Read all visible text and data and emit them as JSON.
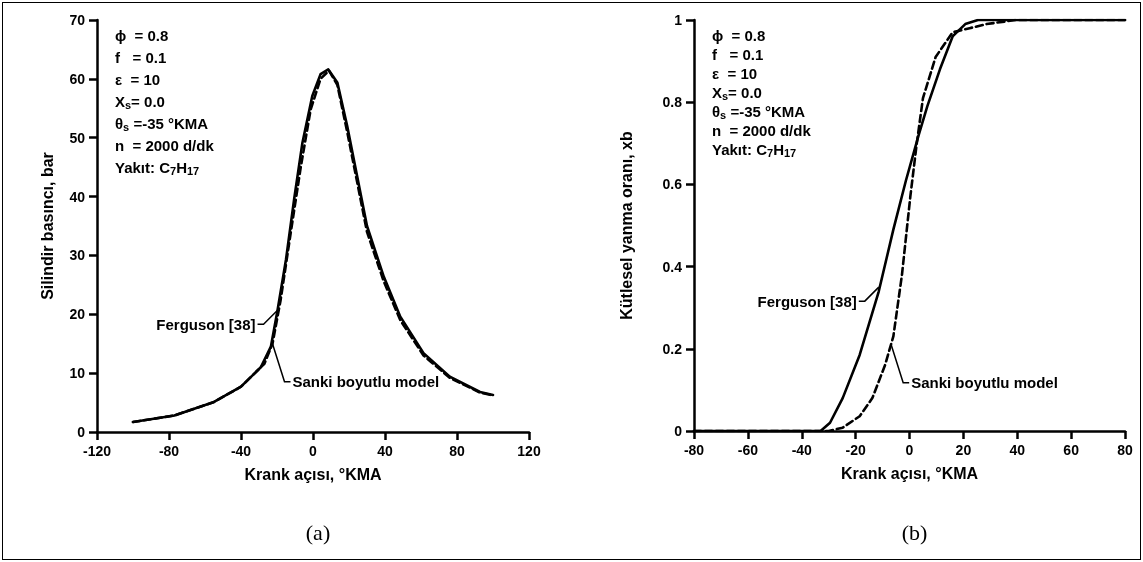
{
  "chart_data": [
    {
      "type": "line",
      "title": "(a)",
      "xlabel": "Krank açısı, °KMA",
      "ylabel": "Silindir basıncı, bar",
      "xlim": [
        -120,
        120
      ],
      "xticks": [
        -120,
        -80,
        -40,
        0,
        40,
        80,
        120
      ],
      "ylim": [
        0,
        70
      ],
      "yticks": [
        0,
        10,
        20,
        30,
        40,
        50,
        60,
        70
      ],
      "grid": false,
      "marker": "none",
      "series": [
        {
          "color": "#000000",
          "line_style": "solid",
          "x": [
            -100,
            -77,
            -55,
            -40,
            -29,
            -23.4,
            -19.7,
            -15,
            -10.5,
            -5.9,
            -0.4,
            4.2,
            8.5,
            13.5,
            19,
            24.5,
            30,
            39.3,
            48.5,
            61.4,
            76,
            92.8,
            100
          ],
          "values": [
            1.7,
            2.8,
            5.1,
            7.7,
            11,
            14.5,
            20.7,
            29.3,
            39.5,
            49.1,
            57.1,
            60.8,
            61.6,
            59.4,
            52,
            43.5,
            35,
            26.4,
            19.6,
            13.4,
            9.4,
            6.8,
            6.3
          ]
        },
        {
          "color": "#000000",
          "line_style": "dashed",
          "x": [
            -100,
            -77,
            -55,
            -40,
            -29,
            -27,
            -22.5,
            -18,
            -12.4,
            -6.8,
            -1.3,
            4.2,
            8.9,
            13.5,
            19,
            24.5,
            30,
            39.3,
            48.5,
            61.4,
            76,
            92.8,
            100
          ],
          "values": [
            1.7,
            2.8,
            5.1,
            7.7,
            11,
            11.6,
            15,
            22.4,
            33.8,
            45,
            54.8,
            60,
            61.4,
            59,
            51,
            42.5,
            34,
            25.6,
            19,
            13,
            9.2,
            6.7,
            6.2
          ]
        }
      ],
      "annotations": [
        "ϕ  = 0.8",
        "f   = 0.1",
        "ε  = 10",
        "X$_{s}$= 0.0",
        "θ$_{s}$ =-35 °KMA",
        "n  = 2000 d/dk",
        "Yakıt: C$_{7}$H$_{17}$",
        {
          "text": "Ferguson [38]",
          "x": -19.7,
          "y": 20.7
        },
        {
          "text": "Sanki boyutlu model",
          "x": -22.5,
          "y": 15
        }
      ]
    },
    {
      "type": "line",
      "title": "(b)",
      "xlabel": "Krank açısı, °KMA",
      "ylabel": "Kütlesel yanma oranı, xb",
      "xlim": [
        -80,
        80
      ],
      "xticks": [
        -80,
        -60,
        -40,
        -20,
        0,
        20,
        40,
        60,
        80
      ],
      "ylim": [
        0,
        1
      ],
      "yticks": [
        0,
        0.2,
        0.4,
        0.6,
        0.8,
        1
      ],
      "grid": false,
      "marker": "none",
      "series": [
        {
          "color": "#000000",
          "line_style": "solid",
          "x": [
            -80,
            -33,
            -29.5,
            -24.8,
            -18.5,
            -11.4,
            -6,
            -1.3,
            3.4,
            6.6,
            11.3,
            16,
            20.7,
            25.4,
            80
          ],
          "values": [
            0,
            0,
            0.02,
            0.08,
            0.185,
            0.34,
            0.49,
            0.61,
            0.72,
            0.79,
            0.88,
            0.96,
            0.99,
            1,
            1
          ]
        },
        {
          "color": "#000000",
          "line_style": "dashed",
          "x": [
            -80,
            -30,
            -24.8,
            -18.5,
            -13.8,
            -9.1,
            -6,
            -2.8,
            0.3,
            2.7,
            5,
            9.7,
            16,
            22.3,
            28.5,
            39.5,
            80
          ],
          "values": [
            0,
            0,
            0.008,
            0.036,
            0.08,
            0.16,
            0.23,
            0.38,
            0.57,
            0.7,
            0.81,
            0.91,
            0.97,
            0.98,
            0.99,
            1,
            1
          ]
        }
      ],
      "annotations": [
        "ϕ  = 0.8",
        "f   = 0.1",
        "ε  = 10",
        "X$_{s}$= 0.0",
        "θ$_{s}$ =-35 °KMA",
        "n  = 2000 d/dk",
        "Yakıt: C$_{7}$H$_{17}$",
        {
          "text": "Ferguson [38]",
          "x": -11.4,
          "y": 0.35
        },
        {
          "text": "Sanki boyutlu model",
          "x": -6.8,
          "y": 0.21
        }
      ]
    }
  ]
}
